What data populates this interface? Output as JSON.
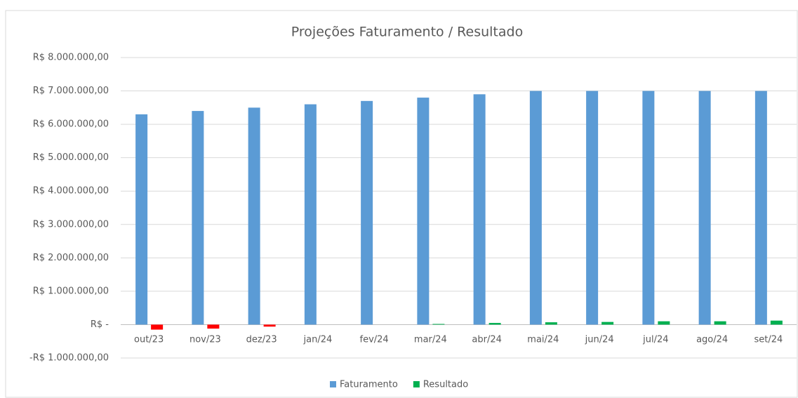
{
  "chart_data": {
    "type": "bar",
    "title": "Projeções Faturamento / Resultado",
    "categories": [
      "out/23",
      "nov/23",
      "dez/23",
      "jan/24",
      "fev/24",
      "mar/24",
      "abr/24",
      "mai/24",
      "jun/24",
      "jul/24",
      "ago/24",
      "set/24"
    ],
    "series": [
      {
        "name": "Faturamento",
        "color": "#5b9bd5",
        "values": [
          6300000,
          6400000,
          6500000,
          6600000,
          6700000,
          6800000,
          6900000,
          7000000,
          7000000,
          7000000,
          7000000,
          7000000
        ]
      },
      {
        "name": "Resultado",
        "color": "#00b050",
        "negative_color": "#ff0000",
        "values": [
          -150000,
          -120000,
          -60000,
          0,
          0,
          20000,
          50000,
          70000,
          80000,
          100000,
          100000,
          120000
        ]
      }
    ],
    "ylim": [
      -1000000,
      8000000
    ],
    "yticks": [
      {
        "value": -1000000,
        "label": "-R$ 1.000.000,00"
      },
      {
        "value": 0,
        "label": "R$ -"
      },
      {
        "value": 1000000,
        "label": "R$ 1.000.000,00"
      },
      {
        "value": 2000000,
        "label": "R$ 2.000.000,00"
      },
      {
        "value": 3000000,
        "label": "R$ 3.000.000,00"
      },
      {
        "value": 4000000,
        "label": "R$ 4.000.000,00"
      },
      {
        "value": 5000000,
        "label": "R$ 5.000.000,00"
      },
      {
        "value": 6000000,
        "label": "R$ 6.000.000,00"
      },
      {
        "value": 7000000,
        "label": "R$ 7.000.000,00"
      },
      {
        "value": 8000000,
        "label": "R$ 8.000.000,00"
      }
    ],
    "grid": true,
    "legend": "bottom"
  }
}
